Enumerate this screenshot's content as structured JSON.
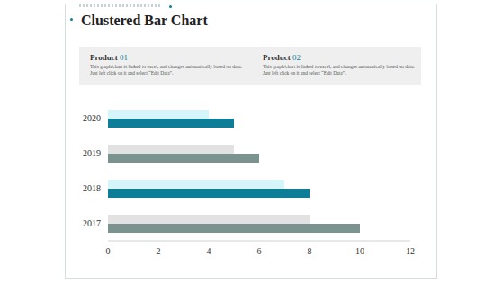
{
  "chart_data": {
    "type": "bar",
    "title": "Clustered Bar Chart",
    "orientation": "horizontal",
    "categories": [
      "2020",
      "2019",
      "2018",
      "2017"
    ],
    "series": [
      {
        "name": "Product 01",
        "description": "This graph/chart is linked to excel, and changes automatically based on data. Just left click on it and select “Edit Data”.",
        "colors": [
          "#d6f5fa",
          "#e2e2e2",
          "#d6f5fa",
          "#e2e2e2"
        ],
        "values": [
          4,
          5,
          7,
          8
        ]
      },
      {
        "name": "Product 02",
        "description": "This graph/chart is linked to excel, and changes automatically based on data. Just left click on it and select “Edit Data”.",
        "colors": [
          "#0e7d97",
          "#7b938e",
          "#0e7d97",
          "#7b938e"
        ],
        "values": [
          5,
          6,
          8,
          10
        ]
      }
    ],
    "xlim": [
      0,
      12
    ],
    "xticks": [
      0,
      2,
      4,
      6,
      8,
      10,
      12
    ],
    "grid": false,
    "tick_labels": true
  }
}
